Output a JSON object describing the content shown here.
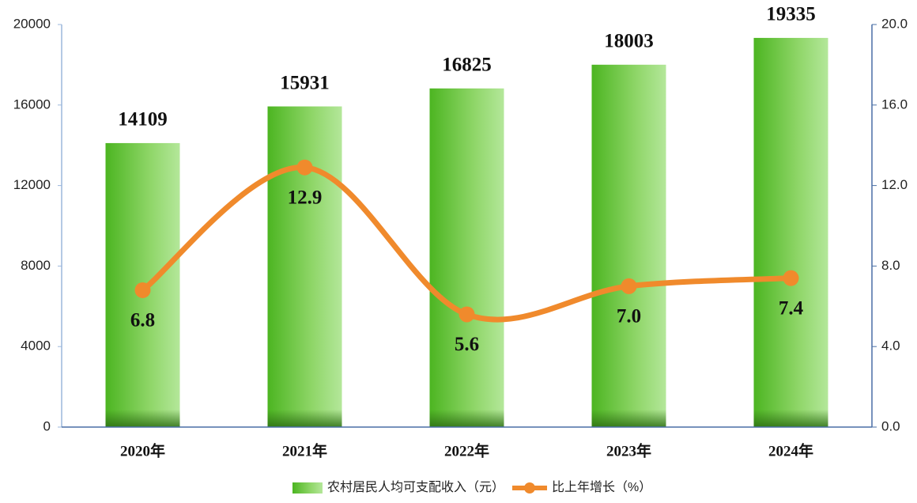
{
  "chart_data": {
    "type": "bar_line",
    "categories": [
      "2020年",
      "2021年",
      "2022年",
      "2023年",
      "2024年"
    ],
    "series": [
      {
        "name": "农村居民人均可支配收入（元）",
        "color": "#5cc22e",
        "values": [
          14109,
          15931,
          16825,
          18003,
          19335
        ]
      },
      {
        "name": "比上年增长（%）",
        "color": "#f08a2c",
        "axis": "y2",
        "values": [
          6.8,
          12.9,
          5.6,
          7.0,
          7.4
        ],
        "value_labels": [
          "6.8",
          "12.9",
          "5.6",
          "7.0",
          "7.4"
        ]
      }
    ],
    "ylim": [
      0,
      20000
    ],
    "yticks": [
      0,
      4000,
      8000,
      12000,
      16000,
      20000
    ],
    "y2lim": [
      0,
      20
    ],
    "y2ticks": [
      {
        "value": 0,
        "label": "0.0"
      },
      {
        "value": 4,
        "label": "4.0"
      },
      {
        "value": 8,
        "label": "8.0"
      },
      {
        "value": 12,
        "label": "12.0"
      },
      {
        "value": 16,
        "label": "16.0"
      },
      {
        "value": 20,
        "label": "20.0"
      }
    ],
    "legend": "bottom"
  }
}
